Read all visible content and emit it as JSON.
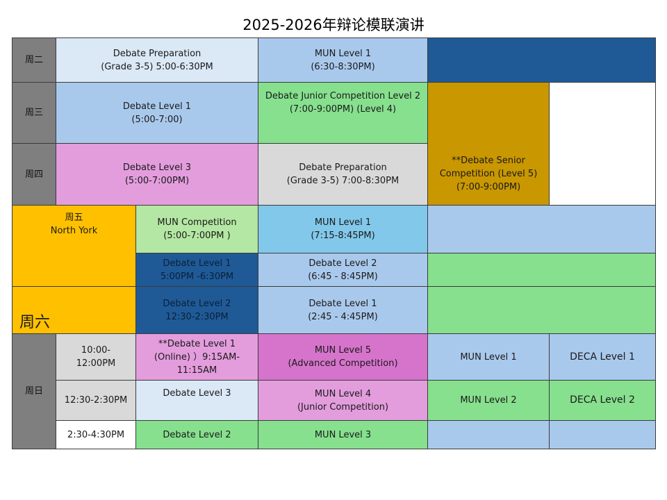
{
  "title": "2025-2026年辩论模联演讲",
  "days": {
    "tue": "周二",
    "wed": "周三",
    "thu": "周四",
    "fri": "周五\nNorth York",
    "sat": "周六",
    "sun": "周日"
  },
  "tuesday": {
    "c1": "Debate Preparation\n(Grade 3-5) 5:00-6:30PM",
    "c2": "MUN  Level 1\n(6:30-8:30PM)"
  },
  "wednesday": {
    "c1": "Debate Level 1\n(5:00-7:00)",
    "c2": "Debate Junior Competition Level 2\n(7:00-9:00PM) (Level 4)"
  },
  "thursday": {
    "c1": "Debate Level 3\n(5:00-7:00PM)",
    "c2": "Debate Preparation\n(Grade 3-5) 7:00-8:30PM",
    "c3": "**Debate Senior\nCompetition (Level 5)\n(7:00-9:00PM)"
  },
  "friday": {
    "r1c1": "MUN Competition\n(5:00-7:00PM )",
    "r1c2": "MUN Level 1\n(7:15-8:45PM)",
    "r2c1": "Debate Level 1\n5:00PM -6:30PM",
    "r2c2": "Debate Level 2\n(6:45 - 8:45PM)"
  },
  "saturday": {
    "c1": "Debate Level 2\n12:30-2:30PM",
    "c2": "Debate Level 1\n(2:45 - 4:45PM)"
  },
  "sunday": {
    "t1": "10:00-\n12:00PM",
    "t2": "12:30-2:30PM",
    "t3": "2:30-4:30PM",
    "r1c1": "**Debate Level 1\n(Online) ）9:15AM-\n11:15AM",
    "r1c2": "MUN Level 5\n(Advanced Competition)",
    "r1c3": "MUN Level 1",
    "r1c4": "DECA Level 1",
    "r2c1": "Debate Level 3",
    "r2c2": "MUN Level 4\n(Junior Competition)",
    "r2c3": "MUN Level 2",
    "r2c4": "DECA Level 2",
    "r3c1": "Debate Level 2",
    "r3c2": "MUN Level 3"
  },
  "colors": {
    "day_gray": "#7f7f7f",
    "light_gray": "#d9d9d9",
    "pale_blue": "#dbe8f6",
    "light_blue": "#a9c9ec",
    "sky_blue": "#82c8ea",
    "dark_blue": "#1f5a96",
    "green": "#86e08e",
    "light_green": "#b4e7a3",
    "pink": "#e39ddd",
    "magenta": "#d674cc",
    "gold": "#c99700",
    "orange": "#ffc000"
  }
}
